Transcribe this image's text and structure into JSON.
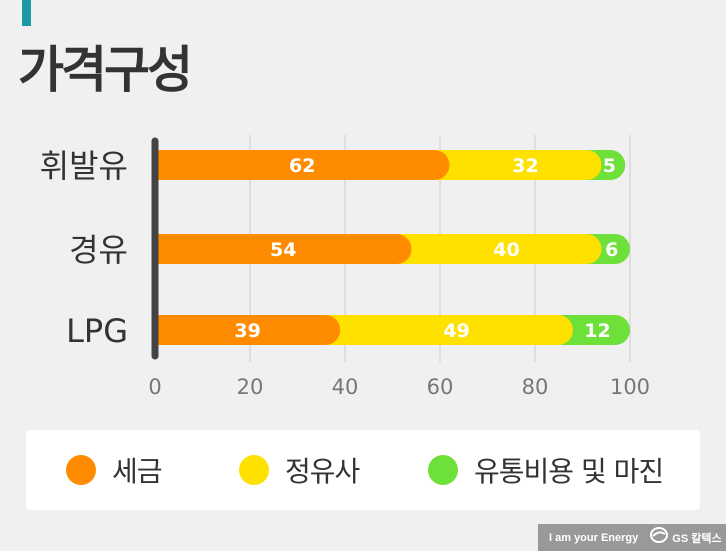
{
  "page": {
    "title": "가격구성"
  },
  "colors": {
    "accent": "#1a9aa0",
    "tax": "#ff8c00",
    "refiner": "#ffe100",
    "margin": "#6ee03a",
    "grid": "#cccccc",
    "axis": "#444444"
  },
  "chart_data": {
    "type": "bar",
    "orientation": "horizontal",
    "stacked": true,
    "categories": [
      "휘발유",
      "경유",
      "LPG"
    ],
    "series": [
      {
        "name": "세금",
        "values": [
          62,
          54,
          39
        ],
        "color": "#ff8c00"
      },
      {
        "name": "정유사",
        "values": [
          32,
          40,
          49
        ],
        "color": "#ffe100"
      },
      {
        "name": "유통비용 및 마진",
        "values": [
          5,
          6,
          12
        ],
        "color": "#6ee03a"
      }
    ],
    "xlim": [
      0,
      100
    ],
    "xticks": [
      0,
      20,
      40,
      60,
      80,
      100
    ],
    "grid": true,
    "legend_position": "bottom",
    "data_labels": true
  },
  "legend": {
    "items": [
      "세금",
      "정유사",
      "유통비용 및 마진"
    ]
  },
  "footer": {
    "tagline": "I am your Energy",
    "logo_text": "GS 칼텍스",
    "logo_icon": "gs-caltex-logo-icon"
  }
}
